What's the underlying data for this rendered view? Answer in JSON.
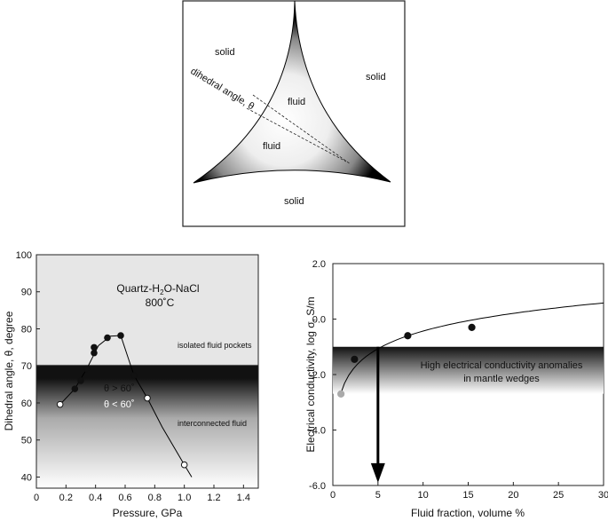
{
  "diagram": {
    "solid_top_left": "solid",
    "solid_right": "solid",
    "solid_bottom": "solid",
    "fluid_upper": "fluid",
    "fluid_lower": "fluid",
    "dihedral_angle_label": "dihedral angle, θ"
  },
  "chart_data": [
    {
      "type": "scatter",
      "xlabel": "Pressure, GPa",
      "ylabel": "Dihedral angle, θ, degree",
      "xlim": [
        0,
        1.5
      ],
      "ylim": [
        37,
        100
      ],
      "xticks": [
        "0",
        "0.2",
        "0.4",
        "0.6",
        "0.8",
        "1.0",
        "1.2",
        "1.4"
      ],
      "yticks": [
        "40",
        "50",
        "60",
        "70",
        "80",
        "90",
        "100"
      ],
      "annotations": {
        "system_prefix": "Quartz-H",
        "system_sub1": "2",
        "system_mid": "O-NaCl",
        "temperature": "800˚C",
        "upper_region": "isolated fluid pockets",
        "lower_region": "interconnected fluid",
        "theta_gt": "θ > 60˚",
        "theta_lt": "θ < 60˚"
      },
      "threshold": 61,
      "series": [
        {
          "marker": "filled",
          "x": [
            0.26,
            0.3,
            0.34,
            0.39,
            0.39,
            0.48,
            0.57,
            0.66
          ],
          "y": [
            63.8,
            66.0,
            69.2,
            73.5,
            75.0,
            77.6,
            78.2,
            67.4
          ]
        },
        {
          "marker": "open",
          "x": [
            0.16,
            0.75,
            1.0
          ],
          "y": [
            59.6,
            61.3,
            43.3
          ]
        }
      ]
    },
    {
      "type": "scatter",
      "xlabel": "Fluid fraction, volume %",
      "ylabel": "Electrical conductivity, log σ,  S/m",
      "xlim": [
        0,
        30
      ],
      "ylim": [
        -6.0,
        2.0
      ],
      "xticks": [
        "0",
        "5",
        "10",
        "15",
        "20",
        "25",
        "30"
      ],
      "yticks": [
        "2.0",
        "0.0",
        "-2.0",
        "-4.0",
        "-6.0"
      ],
      "band_text_line1": "High electrical conductivity anomalies",
      "band_text_line2": "in  mantle wedges",
      "band": [
        -1.0,
        -2.5
      ],
      "arrow_x": 5,
      "series": [
        {
          "marker": "filled",
          "x": [
            2.4,
            8.3,
            15.4
          ],
          "y": [
            -1.45,
            -0.6,
            -0.3
          ]
        },
        {
          "marker": "gray",
          "x": [
            0.9
          ],
          "y": [
            -2.7
          ]
        }
      ]
    }
  ]
}
